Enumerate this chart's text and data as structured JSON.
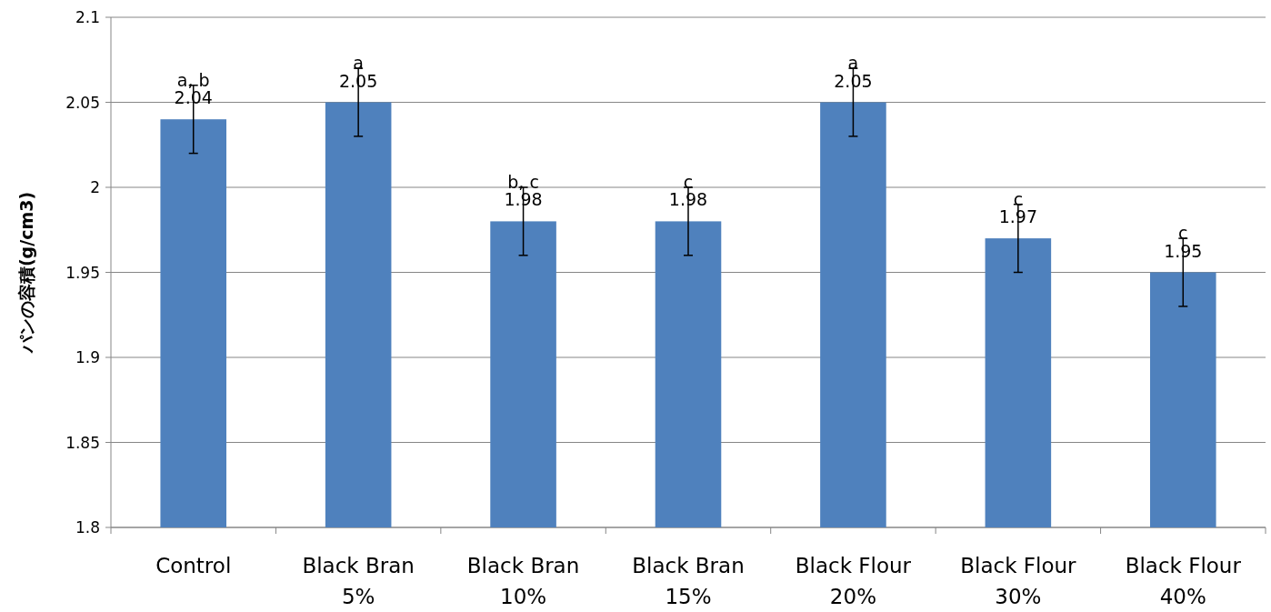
{
  "chart_data": {
    "type": "bar",
    "ylabel": "パンの容積(g/cm3)",
    "categories": [
      "Control",
      "Black Bran 5%",
      "Black Bran 10%",
      "Black Bran 15%",
      "Black Flour 20%",
      "Black Flour 30%",
      "Black Flour 40%"
    ],
    "values": [
      2.04,
      2.05,
      1.98,
      1.98,
      2.05,
      1.97,
      1.95
    ],
    "errors": [
      0.02,
      0.02,
      0.02,
      0.02,
      0.02,
      0.02,
      0.02
    ],
    "color": "#4f81bd",
    "data_labels": true,
    "ylim": [
      1.8,
      2.1
    ],
    "yticks": [
      1.8,
      1.85,
      1.9,
      1.95,
      2,
      2.05,
      2.1
    ],
    "grid": "y",
    "annotations": [
      {
        "text": "a, b",
        "x": "Control",
        "y": 2.06
      },
      {
        "text": "a",
        "x": "Black Bran 5%",
        "y": 2.07
      },
      {
        "text": "b, c",
        "x": "Black Bran 10%",
        "y": 2.0
      },
      {
        "text": "c",
        "x": "Black Bran 15%",
        "y": 2.0
      },
      {
        "text": "a",
        "x": "Black Flour 20%",
        "y": 2.07
      },
      {
        "text": "c",
        "x": "Black Flour 30%",
        "y": 1.99
      },
      {
        "text": "c",
        "x": "Black Flour 40%",
        "y": 1.97
      }
    ]
  }
}
